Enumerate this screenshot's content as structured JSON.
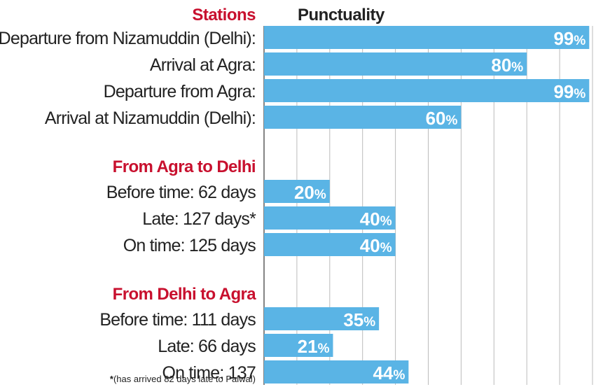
{
  "chart_data": {
    "type": "bar",
    "orientation": "horizontal",
    "title": "",
    "header_left": "Stations",
    "header_right": "Punctuality",
    "value_suffix": "%",
    "xlim": [
      0,
      100
    ],
    "grid": true,
    "bar_color": "#5ab4e5",
    "accent_color": "#c8102e",
    "groups": [
      {
        "title": "",
        "rows": [
          {
            "label": "Departure from Nizamuddin (Delhi):",
            "value": 99
          },
          {
            "label": "Arrival at Agra:",
            "value": 80
          },
          {
            "label": "Departure from Agra:",
            "value": 99
          },
          {
            "label": "Arrival at Nizamuddin (Delhi):",
            "value": 60
          }
        ]
      },
      {
        "title": "From Agra to Delhi",
        "rows": [
          {
            "label": "Before time: 62 days",
            "value": 20
          },
          {
            "label": "Late:  127 days*",
            "value": 40
          },
          {
            "label": "On time: 125 days",
            "value": 40
          }
        ]
      },
      {
        "title": "From Delhi to Agra",
        "rows": [
          {
            "label": "Before time: 111 days",
            "value": 35
          },
          {
            "label": "Late: 66 days",
            "value": 21
          },
          {
            "label": "On time: 137",
            "value": 44
          }
        ]
      }
    ],
    "footnote_star": "*",
    "footnote": "(has arrived 82 days late to Palwal)"
  }
}
